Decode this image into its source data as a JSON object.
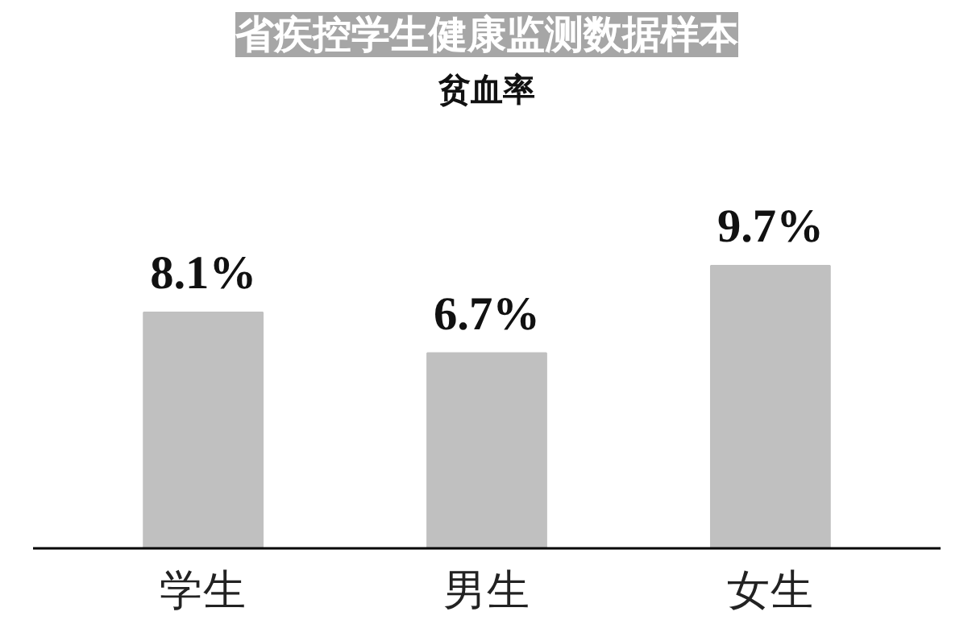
{
  "chart_data": {
    "type": "bar",
    "title": "省疾控学生健康监测数据样本",
    "subtitle": "贫血率",
    "categories": [
      "学生",
      "男生",
      "女生"
    ],
    "values": [
      8.1,
      6.7,
      9.7
    ],
    "value_labels": [
      "8.1%",
      "6.7%",
      "9.7%"
    ],
    "color": "#c0c0c0"
  }
}
